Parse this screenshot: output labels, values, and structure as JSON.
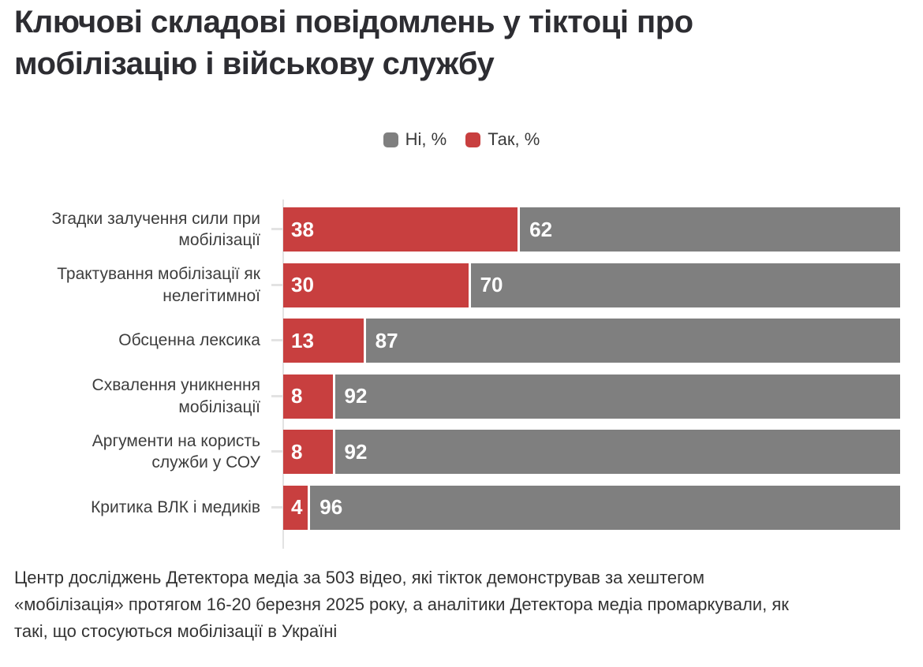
{
  "title": "Ключові складові повідомлень у тіктоці про мобілізацію і військову службу",
  "legend": {
    "items": [
      {
        "label": "Ні, %",
        "color": "#7f7f7f"
      },
      {
        "label": "Так, %",
        "color": "#c83f3f"
      }
    ]
  },
  "chart_data": {
    "type": "bar",
    "orientation": "horizontal",
    "stacked": true,
    "title": "Ключові складові повідомлень у тіктоці про мобілізацію і військову службу",
    "categories": [
      "Згадки залучення сили при мобілізації",
      "Трактування мобілізації як нелегітимної",
      "Обсценна лексика",
      "Схвалення уникнення мобілізації",
      "Аргументи на користь служби у СОУ",
      "Критика ВЛК і медиків"
    ],
    "category_lines": [
      [
        "Згадки залучення сили при",
        "мобілізації"
      ],
      [
        "Трактування мобілізації як",
        "нелегітимної"
      ],
      [
        "Обсценна лексика"
      ],
      [
        "Схвалення уникнення",
        "мобілізації"
      ],
      [
        "Аргументи на користь",
        "служби у СОУ"
      ],
      [
        "Критика ВЛК і медиків"
      ]
    ],
    "series": [
      {
        "name": "Так, %",
        "color": "#c83f3f",
        "values": [
          38,
          30,
          13,
          8,
          8,
          4
        ]
      },
      {
        "name": "Ні, %",
        "color": "#7f7f7f",
        "values": [
          62,
          70,
          87,
          92,
          92,
          96
        ]
      }
    ],
    "xlim": [
      0,
      100
    ],
    "unit": "%",
    "value_labels": "inside-start",
    "legend_position": "top-center",
    "grid": false
  },
  "footer": {
    "lines": [
      "Центр досліджень Детектора медіа за 503 відео, які тікток демонстрував за хештегом",
      "«мобілізація» протягом 16-20 березня 2025 року, а аналітики Детектора медіа промаркували, як",
      "такі, що стосуються мобілізації в Україні"
    ]
  }
}
